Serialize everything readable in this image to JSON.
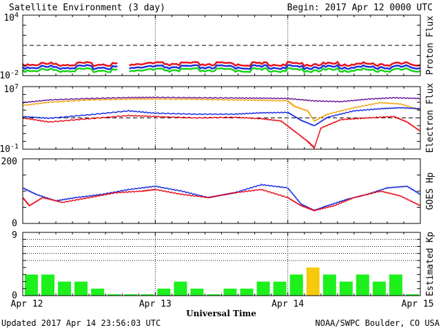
{
  "header": {
    "title": "Satellite Environment (3 day)",
    "begin": "Begin:  2017 Apr 12 0000 UTC"
  },
  "footer": {
    "updated": "Updated 2017 Apr 14 23:56:03 UTC",
    "credit": "NOAA/SWPC Boulder, CO USA"
  },
  "colors": {
    "red": "#e8101c",
    "blue": "#1a2ee0",
    "green": "#19d21a",
    "orange": "#f2a516",
    "purple": "#6b1a9a",
    "kp_green": "#1ef01e",
    "kp_yellow": "#f7c90c"
  },
  "chart_data": [
    {
      "name": "proton",
      "type": "line",
      "ylabel": "Proton Flux",
      "yscale": "log",
      "ylim": [
        0.01,
        10000
      ],
      "ytick_labels": [
        {
          "base": "10",
          "exp": "4"
        },
        {
          "base": "10",
          "exp": "-2"
        }
      ],
      "threshold": 10,
      "x_units": "days since 2017 Apr 12 0000 UTC",
      "gap": [
        0.72,
        0.8
      ],
      "series": [
        {
          "color": "red",
          "x": [
            0,
            0.5,
            1,
            1.5,
            2,
            2.5,
            3
          ],
          "y": [
            0.14,
            0.14,
            0.15,
            0.14,
            0.14,
            0.14,
            0.14
          ]
        },
        {
          "color": "blue",
          "x": [
            0,
            0.5,
            1,
            1.5,
            2,
            2.5,
            3
          ],
          "y": [
            0.07,
            0.07,
            0.07,
            0.07,
            0.07,
            0.07,
            0.07
          ]
        },
        {
          "color": "green",
          "x": [
            0,
            0.5,
            1,
            1.5,
            2,
            2.5,
            3
          ],
          "y": [
            0.035,
            0.035,
            0.035,
            0.035,
            0.035,
            0.035,
            0.035
          ]
        }
      ]
    },
    {
      "name": "electron",
      "type": "line",
      "ylabel": "Electron Flux",
      "yscale": "log",
      "ylim": [
        0.1,
        10000000
      ],
      "ytick_labels": [
        {
          "base": "10",
          "exp": "7"
        },
        {
          "base": "10",
          "exp": "-1"
        }
      ],
      "threshold": 1000,
      "series": [
        {
          "color": "purple",
          "x": [
            0,
            0.2,
            0.5,
            0.8,
            1,
            1.3,
            1.6,
            1.8,
            2.0,
            2.2,
            2.4,
            2.6,
            2.8,
            3.0
          ],
          "y": [
            90000,
            200000,
            300000,
            400000,
            420000,
            380000,
            350000,
            330000,
            300000,
            150000,
            120000,
            250000,
            380000,
            300000
          ]
        },
        {
          "color": "orange",
          "x": [
            0,
            0.2,
            0.5,
            0.8,
            1,
            1.3,
            1.6,
            1.8,
            2.0,
            2.05,
            2.15,
            2.2,
            2.3,
            2.5,
            2.7,
            2.85,
            3.0
          ],
          "y": [
            40000,
            100000,
            200000,
            250000,
            260000,
            240000,
            200000,
            180000,
            150000,
            30000,
            8000,
            400,
            3000,
            20000,
            90000,
            60000,
            10000
          ]
        },
        {
          "color": "blue",
          "x": [
            0,
            0.2,
            0.5,
            0.8,
            1,
            1.3,
            1.6,
            1.8,
            2.0,
            2.1,
            2.2,
            2.3,
            2.5,
            2.7,
            2.85,
            3.0
          ],
          "y": [
            1500,
            900,
            2500,
            8000,
            4000,
            3000,
            3000,
            4500,
            5000,
            500,
            100,
            1200,
            8000,
            15000,
            20000,
            15000
          ]
        },
        {
          "color": "red",
          "x": [
            0,
            0.2,
            0.5,
            0.8,
            1,
            1.3,
            1.6,
            1.8,
            1.95,
            2.05,
            2.15,
            2.2,
            2.25,
            2.4,
            2.6,
            2.8,
            2.9,
            3.0
          ],
          "y": [
            1000,
            300,
            800,
            2000,
            1500,
            1000,
            1200,
            800,
            400,
            20,
            1,
            0.15,
            50,
            600,
            1000,
            1500,
            300,
            20
          ]
        }
      ]
    },
    {
      "name": "goes_hp",
      "type": "line",
      "ylabel": "GOES Hp",
      "ylim": [
        0,
        200
      ],
      "ytick_labels": [
        "200",
        "0"
      ],
      "series": [
        {
          "color": "blue",
          "x": [
            0,
            0.1,
            0.25,
            0.4,
            0.6,
            0.8,
            1.0,
            1.2,
            1.4,
            1.6,
            1.8,
            2.0,
            2.1,
            2.2,
            2.3,
            2.45,
            2.6,
            2.75,
            2.9,
            3.0
          ],
          "y": [
            110,
            90,
            70,
            80,
            90,
            105,
            115,
            100,
            80,
            95,
            120,
            110,
            60,
            40,
            55,
            75,
            90,
            110,
            115,
            90
          ]
        },
        {
          "color": "red",
          "x": [
            0,
            0.05,
            0.15,
            0.3,
            0.5,
            0.7,
            0.9,
            1.0,
            1.2,
            1.4,
            1.6,
            1.8,
            2.0,
            2.1,
            2.2,
            2.35,
            2.5,
            2.7,
            2.85,
            3.0
          ],
          "y": [
            80,
            55,
            80,
            65,
            80,
            95,
            100,
            105,
            90,
            80,
            95,
            105,
            80,
            55,
            40,
            55,
            80,
            100,
            85,
            55
          ]
        }
      ]
    },
    {
      "name": "kp",
      "type": "bar",
      "ylabel": "Estimated Kp",
      "ylim": [
        0,
        9
      ],
      "ytick_labels": [
        "9",
        "0"
      ],
      "x_tick_labels": [
        "Apr 12",
        "Apr 13",
        "Apr 14",
        "Apr 15"
      ],
      "xlabel": "Universal Time",
      "values": [
        3,
        3,
        2,
        2,
        1,
        0,
        0,
        0,
        1,
        2,
        1,
        0,
        1,
        1,
        2,
        2,
        3,
        4,
        3,
        2,
        3,
        2,
        3,
        0
      ],
      "bar_colors": [
        "kp_green",
        "kp_green",
        "kp_green",
        "kp_green",
        "kp_green",
        "kp_green",
        "kp_green",
        "kp_green",
        "kp_green",
        "kp_green",
        "kp_green",
        "kp_green",
        "kp_green",
        "kp_green",
        "kp_green",
        "kp_green",
        "kp_green",
        "kp_yellow",
        "kp_green",
        "kp_green",
        "kp_green",
        "kp_green",
        "kp_green",
        "kp_green"
      ]
    }
  ]
}
